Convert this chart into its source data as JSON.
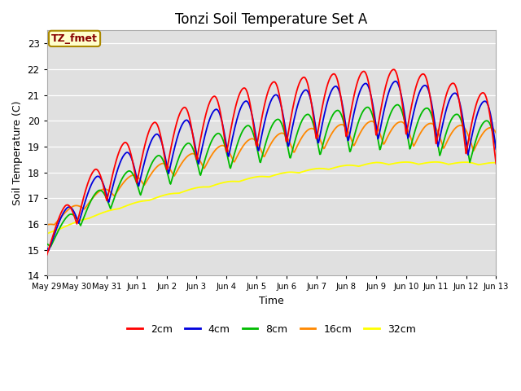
{
  "title": "Tonzi Soil Temperature Set A",
  "xlabel": "Time",
  "ylabel": "Soil Temperature (C)",
  "ylim": [
    14.0,
    23.5
  ],
  "yticks": [
    14.0,
    15.0,
    16.0,
    17.0,
    18.0,
    19.0,
    20.0,
    21.0,
    22.0,
    23.0
  ],
  "annotation_text": "TZ_fmet",
  "annotation_color": "#880000",
  "annotation_bg": "#ffffcc",
  "annotation_border": "#aa8800",
  "colors": {
    "2cm": "#ff0000",
    "4cm": "#0000dd",
    "8cm": "#00bb00",
    "16cm": "#ff8800",
    "32cm": "#ffff00"
  },
  "legend_labels": [
    "2cm",
    "4cm",
    "8cm",
    "16cm",
    "32cm"
  ],
  "num_days": 15,
  "samples_per_day": 48,
  "tick_labels": [
    "May 29",
    "May 30",
    "May 31",
    "Jun 1",
    "Jun 2",
    "Jun 3",
    "Jun 4",
    "Jun 5",
    "Jun 6",
    "Jun 7",
    "Jun 8",
    "Jun 9",
    "Jun 10",
    "Jun 11",
    "Jun 12",
    "Jun 13"
  ]
}
